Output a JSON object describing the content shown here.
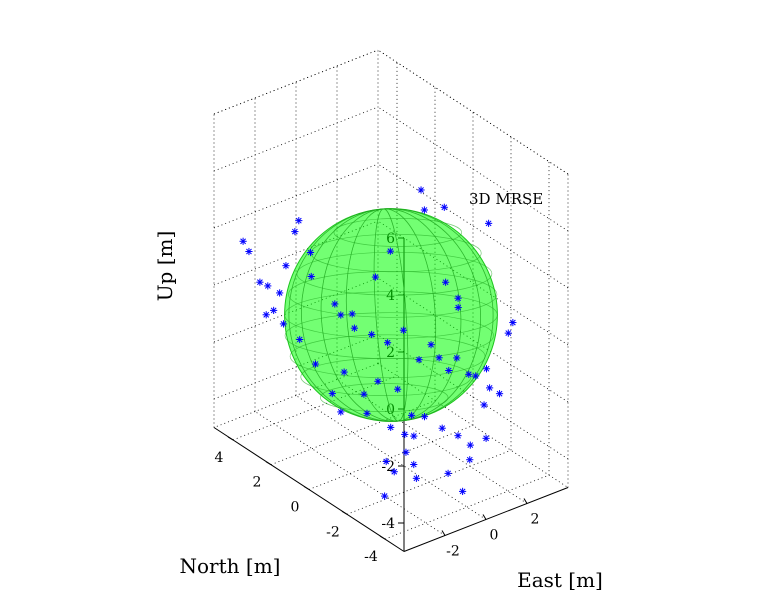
{
  "chart_data": {
    "type": "scatter",
    "title": "",
    "xlabel": "East [m]",
    "ylabel": "North [m]",
    "zlabel": "Up [m]",
    "x_ticks": [
      -2,
      0,
      2
    ],
    "y_ticks": [
      -4,
      -2,
      0,
      2,
      4
    ],
    "z_ticks": [
      -4,
      -2,
      0,
      2,
      4,
      6
    ],
    "xlim": [
      -4,
      4
    ],
    "ylim": [
      -5,
      5
    ],
    "zlim": [
      -5,
      6
    ],
    "grid": true,
    "annotation": "3D MRSE",
    "sphere": {
      "center": [
        0,
        0,
        0
      ],
      "radius": 3.8,
      "color": "#00ff00"
    },
    "marker_color": "#0000ff",
    "marker": "asterisk",
    "points": [
      [
        -1.5,
        -3.2,
        6.2
      ],
      [
        -1.8,
        -3.7,
        5.8
      ],
      [
        -1.2,
        -4.1,
        5.9
      ],
      [
        -3.2,
        1.4,
        3.6
      ],
      [
        -3.3,
        1.5,
        3.2
      ],
      [
        -3.0,
        1.0,
        2.6
      ],
      [
        -1.7,
        -1.8,
        3.5
      ],
      [
        -1.6,
        -4.6,
        3.6
      ],
      [
        -0.9,
        -4.5,
        2.8
      ],
      [
        -3.5,
        3.7,
        1.6
      ],
      [
        -3.6,
        3.9,
        1.9
      ],
      [
        -2.9,
        2.4,
        1.5
      ],
      [
        -1.5,
        -0.8,
        2.1
      ],
      [
        -0.8,
        -4.4,
        2.4
      ],
      [
        3.0,
        -1.9,
        3.2
      ],
      [
        -3.8,
        2.8,
        1.0
      ],
      [
        -3.6,
        2.6,
        0.9
      ],
      [
        -3.3,
        2.3,
        0.7
      ],
      [
        -3.5,
        2.4,
        0.1
      ],
      [
        -3.3,
        2.1,
        -0.3
      ],
      [
        -3.4,
        2.9,
        -0.3
      ],
      [
        -2.5,
        1.5,
        1.4
      ],
      [
        -2.0,
        0.8,
        0.6
      ],
      [
        -1.8,
        0.7,
        0.2
      ],
      [
        -1.6,
        0.2,
        -0.1
      ],
      [
        -1.8,
        0.1,
        0.5
      ],
      [
        -1.5,
        -0.6,
        0.0
      ],
      [
        -1.0,
        -0.9,
        -0.3
      ],
      [
        -0.6,
        -1.3,
        0.2
      ],
      [
        -0.3,
        -1.8,
        -0.7
      ],
      [
        0.1,
        -2.0,
        -0.2
      ],
      [
        0.4,
        -2.1,
        -0.7
      ],
      [
        0.5,
        -2.5,
        -1.0
      ],
      [
        0.8,
        -2.6,
        -0.6
      ],
      [
        1.2,
        -2.8,
        -1.2
      ],
      [
        1.6,
        -3.3,
        -0.9
      ],
      [
        2.2,
        -3.8,
        0.4
      ],
      [
        2.7,
        -3.5,
        0.5
      ],
      [
        2.0,
        -2.3,
        -1.7
      ],
      [
        2.4,
        -2.6,
        -2.1
      ],
      [
        2.7,
        -2.8,
        -2.3
      ],
      [
        2.5,
        -2.2,
        -2.9
      ],
      [
        -2.1,
        0.2,
        -1.5
      ],
      [
        -1.6,
        -0.3,
        -2.2
      ],
      [
        -2.4,
        0.5,
        -2.3
      ],
      [
        -1.8,
        0.7,
        -3.2
      ],
      [
        -2.6,
        2.0,
        -1.0
      ],
      [
        -2.2,
        1.6,
        -1.8
      ],
      [
        -1.1,
        -0.5,
        -1.8
      ],
      [
        -0.6,
        -1.0,
        -2.0
      ],
      [
        -0.2,
        -1.3,
        -2.9
      ],
      [
        -0.8,
        0.4,
        -3.4
      ],
      [
        -0.2,
        -0.2,
        -3.8
      ],
      [
        0.3,
        -0.4,
        -4.1
      ],
      [
        0.8,
        -0.9,
        -3.4
      ],
      [
        1.2,
        -1.4,
        -3.7
      ],
      [
        1.6,
        -1.8,
        -3.9
      ],
      [
        2.2,
        -1.8,
        -4.4
      ],
      [
        2.6,
        -2.2,
        -4.1
      ],
      [
        1.3,
        0.2,
        -4.7
      ],
      [
        1.1,
        0.4,
        -5.3
      ],
      [
        0.6,
        0.9,
        -5.7
      ],
      [
        0.9,
        0.8,
        -6.1
      ],
      [
        3.1,
        -0.8,
        -5.6
      ],
      [
        2.6,
        -0.2,
        -6.2
      ],
      [
        2.5,
        1.5,
        -6.6
      ],
      [
        3.4,
        -0.1,
        -7.1
      ],
      [
        3.0,
        1.9,
        -7.4
      ],
      [
        0.8,
        1.2,
        -7.1
      ]
    ]
  }
}
